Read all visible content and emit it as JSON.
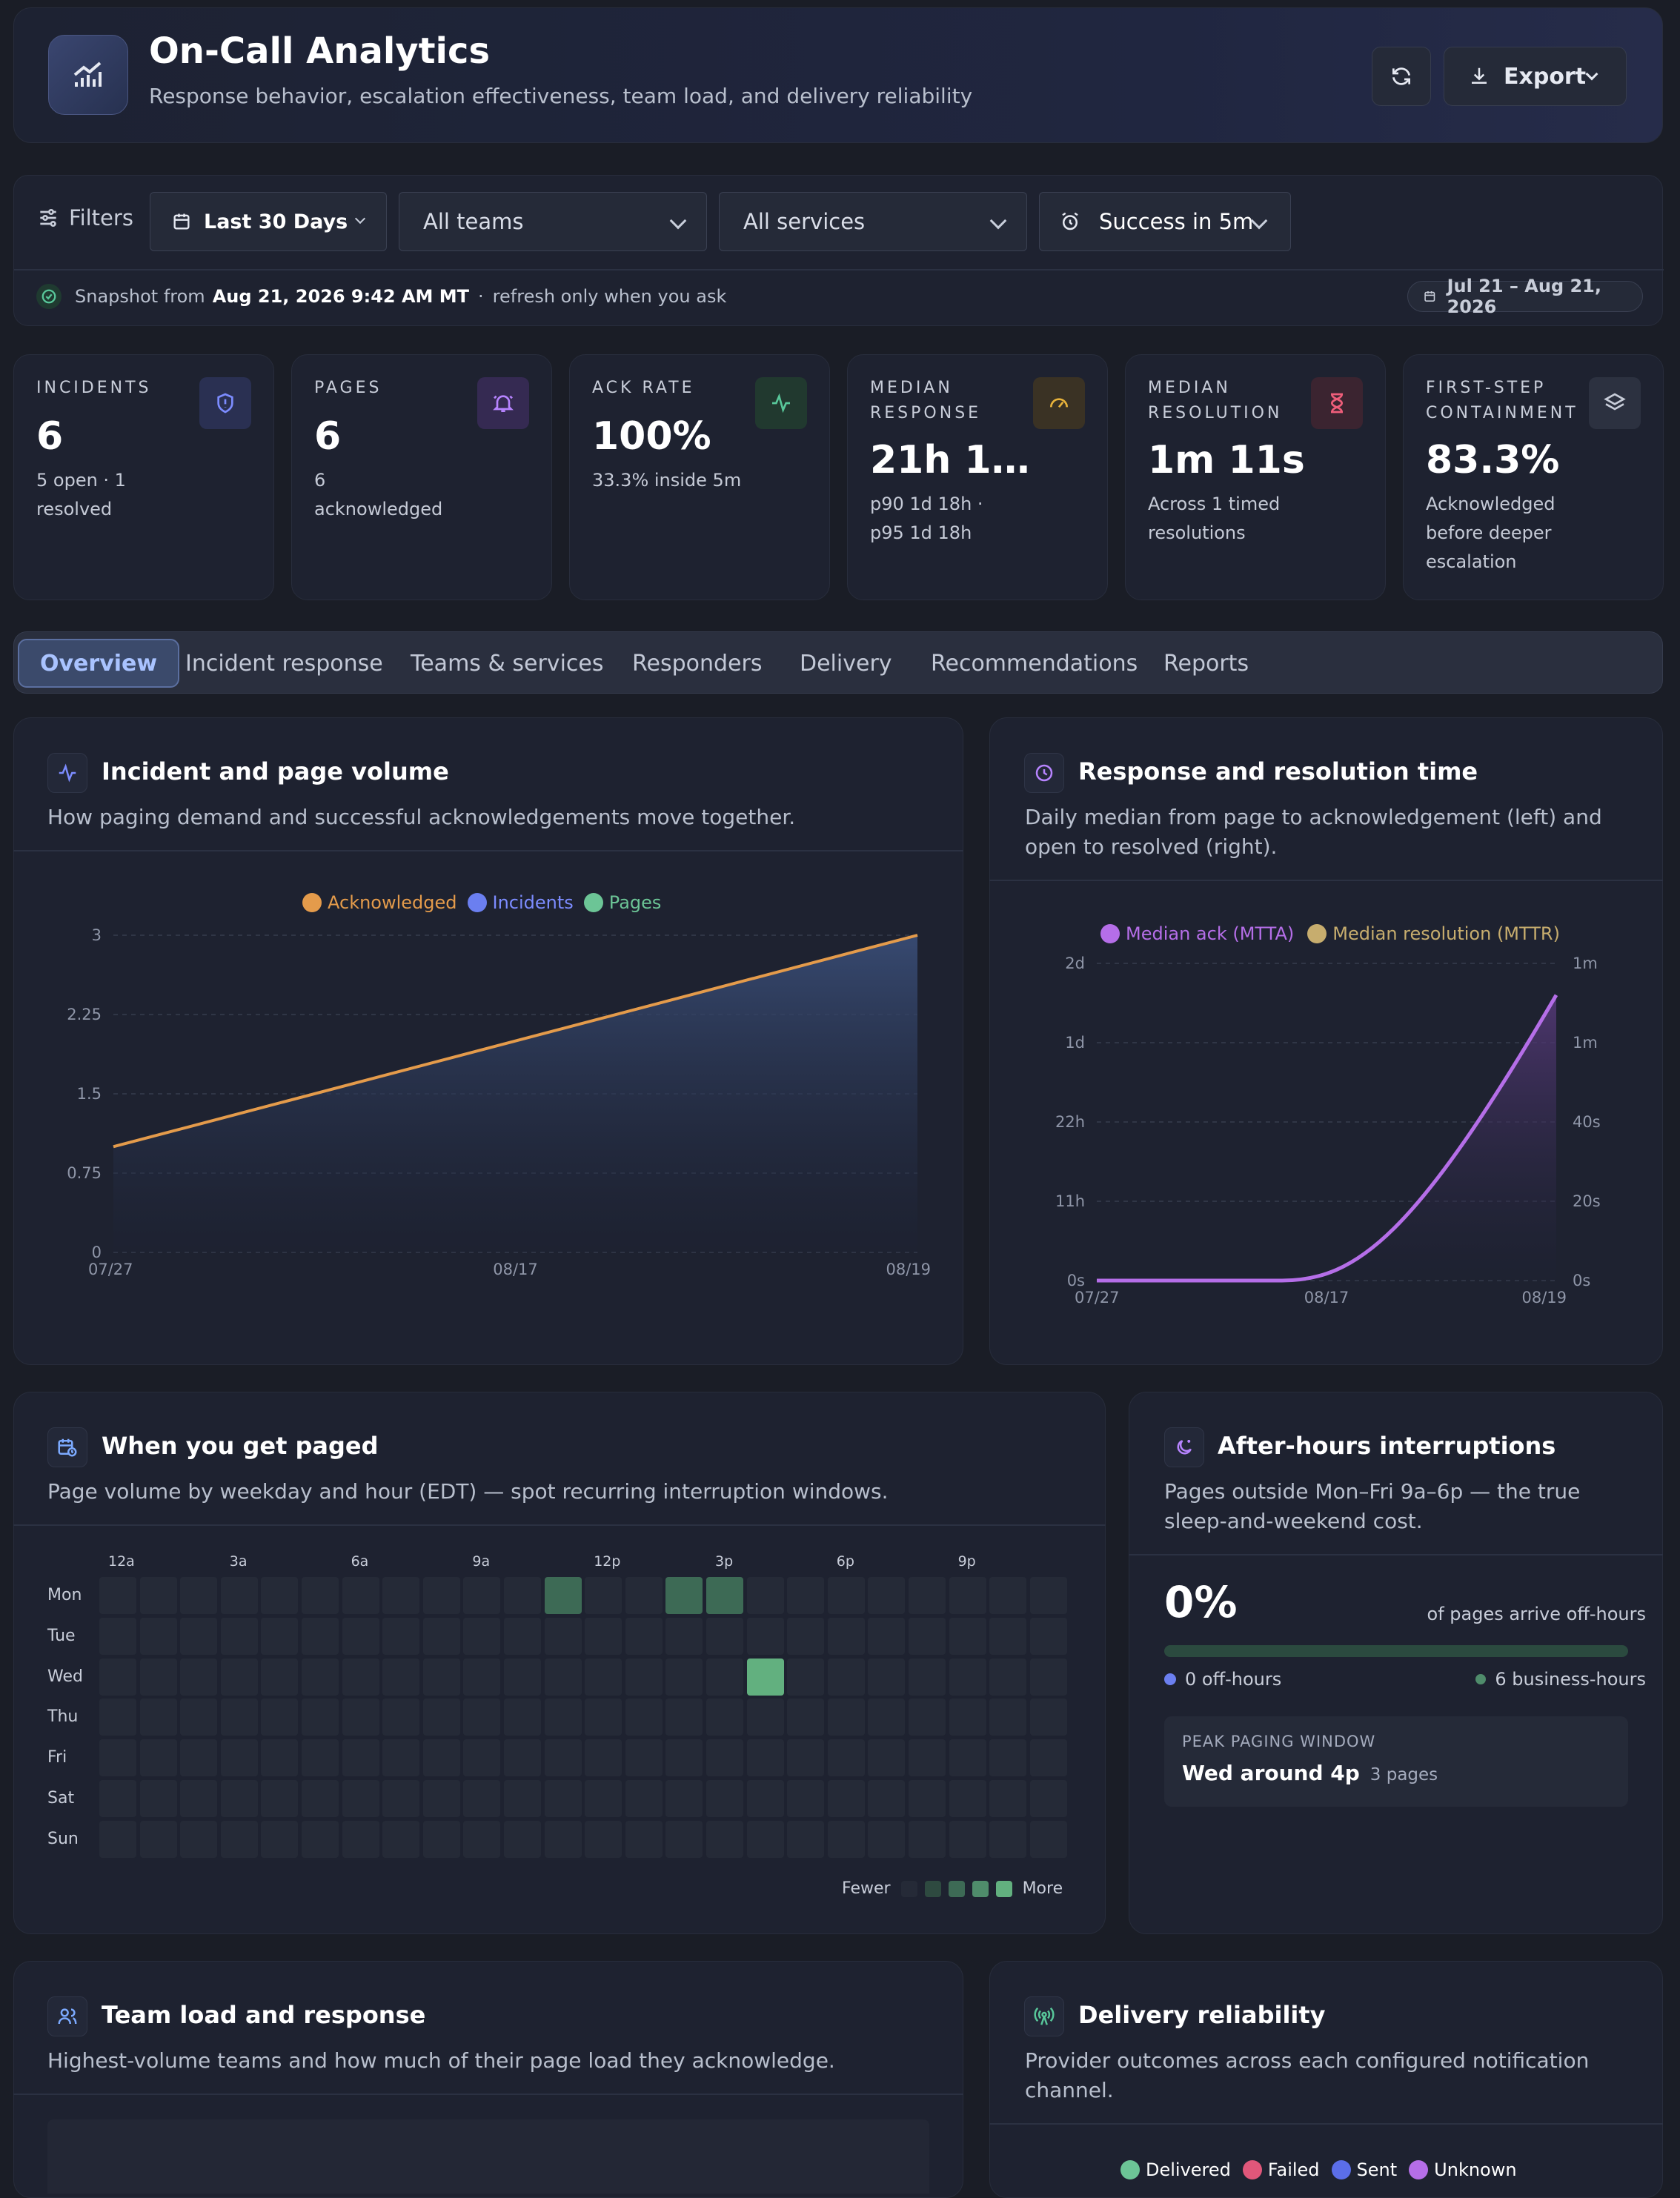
{
  "header": {
    "title": "On-Call Analytics",
    "subtitle": "Response behavior, escalation effectiveness, team load, and delivery reliability",
    "export_label": "Export"
  },
  "filters": {
    "label": "Filters",
    "date_range": "Last 30 Days",
    "teams": "All teams",
    "services": "All services",
    "success": "Success in 5m"
  },
  "snapshot": {
    "prefix": "Snapshot from",
    "time": "Aug 21, 2026 9:42 AM MT",
    "sep": "·",
    "note": "refresh only when you ask",
    "range": "Jul 21 – Aug 21, 2026"
  },
  "stats": [
    {
      "label": "INCIDENTS",
      "value": "6",
      "sub": "5 open · 1 resolved",
      "icon": "shield-icon",
      "color": "#7c8cff"
    },
    {
      "label": "PAGES",
      "value": "6",
      "sub": "6 acknowledged",
      "icon": "bell-icon",
      "color": "#b784ff"
    },
    {
      "label": "ACK RATE",
      "value": "100%",
      "sub": "33.3% inside 5m",
      "icon": "activity-icon",
      "color": "#58c79a"
    },
    {
      "label": "MEDIAN RESPONSE",
      "value": "21h 1…",
      "sub": "p90 1d 18h · p95 1d 18h",
      "icon": "gauge-icon",
      "color": "#e8b33b"
    },
    {
      "label": "MEDIAN RESOLUTION",
      "value": "1m 11s",
      "sub": "Across 1 timed resolutions",
      "icon": "hourglass-icon",
      "color": "#ef5e7a"
    },
    {
      "label": "FIRST-STEP CONTAINMENT",
      "value": "83.3%",
      "sub": "Acknowledged before deeper escalation",
      "icon": "layers-icon",
      "color": "#b6bccb"
    }
  ],
  "tabs": [
    "Overview",
    "Incident response",
    "Teams & services",
    "Responders",
    "Delivery",
    "Recommendations",
    "Reports"
  ],
  "volume": {
    "title": "Incident and page volume",
    "desc": "How paging demand and successful acknowledgements move together.",
    "chart_data": {
      "type": "area",
      "x": [
        "07/27",
        "08/17",
        "08/19"
      ],
      "yticks": [
        "0",
        "0.75",
        "1.5",
        "2.25",
        "3"
      ],
      "ylim": [
        0,
        3
      ],
      "series": [
        {
          "name": "Acknowledged",
          "color": "#e49b4b",
          "values": [
            1,
            2.7,
            3
          ]
        },
        {
          "name": "Incidents",
          "color": "#6b7ff0",
          "values": [
            1,
            2.7,
            3
          ]
        },
        {
          "name": "Pages",
          "color": "#6cc596",
          "values": [
            1,
            2.7,
            3
          ]
        }
      ]
    }
  },
  "response": {
    "title": "Response and resolution time",
    "desc": "Daily median from page to acknowledgement (left) and open to resolved (right).",
    "chart_data": {
      "type": "area",
      "x": [
        "07/27",
        "08/17",
        "08/19"
      ],
      "yticks_left": [
        "0s",
        "11h",
        "22h",
        "1d",
        "2d"
      ],
      "yticks_right": [
        "0s",
        "20s",
        "40s",
        "1m",
        "1m"
      ],
      "series": [
        {
          "name": "Median ack (MTTA)",
          "color": "#b56ee8",
          "values": [
            0,
            0,
            1.8
          ]
        },
        {
          "name": "Median resolution (MTTR)",
          "color": "#c7ad6e",
          "values": [
            0,
            0,
            0
          ]
        }
      ]
    }
  },
  "heatmap": {
    "title": "When you get paged",
    "desc": "Page volume by weekday and hour (EDT) — spot recurring interruption windows.",
    "days": [
      "Mon",
      "Tue",
      "Wed",
      "Thu",
      "Fri",
      "Sat",
      "Sun"
    ],
    "hours": [
      "12a",
      "3a",
      "6a",
      "9a",
      "12p",
      "3p",
      "6p",
      "9p"
    ],
    "cells": [
      {
        "day": 0,
        "hour": 11,
        "count": 1
      },
      {
        "day": 0,
        "hour": 14,
        "count": 1
      },
      {
        "day": 0,
        "hour": 15,
        "count": 1
      },
      {
        "day": 2,
        "hour": 16,
        "count": 3
      }
    ],
    "fewer": "Fewer",
    "more": "More"
  },
  "afterhours": {
    "title": "After-hours interruptions",
    "desc": "Pages outside Mon–Fri 9a–6p — the true sleep-and-weekend cost.",
    "pct": "0%",
    "pct_label": "of pages arrive off-hours",
    "off": "0 off-hours",
    "biz": "6 business-hours",
    "peak_label": "PEAK PAGING WINDOW",
    "peak_value": "Wed around 4p",
    "peak_count": "3 pages"
  },
  "team": {
    "title": "Team load and response",
    "desc": "Highest-volume teams and how much of their page load they acknowledge."
  },
  "delivery": {
    "title": "Delivery reliability",
    "desc": "Provider outcomes across each configured notification channel.",
    "legend": [
      {
        "name": "Delivered",
        "color": "#6cc596"
      },
      {
        "name": "Failed",
        "color": "#e0577a"
      },
      {
        "name": "Sent",
        "color": "#5b6ee8"
      },
      {
        "name": "Unknown",
        "color": "#b56ee8"
      }
    ]
  }
}
